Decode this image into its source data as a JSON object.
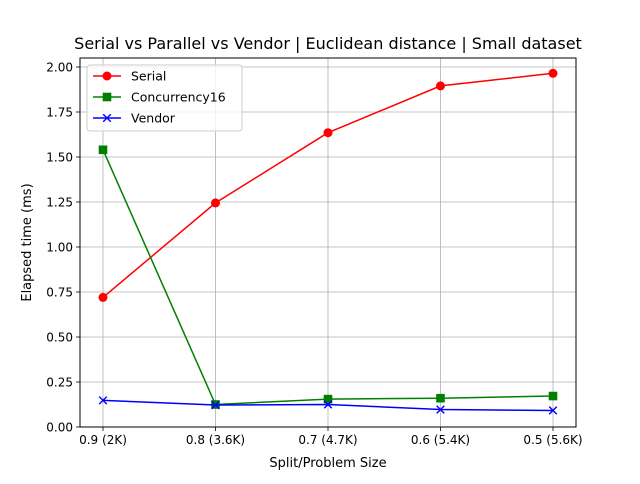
{
  "chart_data": {
    "type": "line",
    "title": "Serial vs Parallel vs Vendor | Euclidean distance | Small dataset",
    "xlabel": "Split/Problem Size",
    "ylabel": "Elapsed time (ms)",
    "categories": [
      "0.9 (2K)",
      "0.8 (3.6K)",
      "0.7 (4.7K)",
      "0.6 (5.4K)",
      "0.5 (5.6K)"
    ],
    "ylim": [
      0.0,
      2.05
    ],
    "yticks": [
      0.0,
      0.25,
      0.5,
      0.75,
      1.0,
      1.25,
      1.5,
      1.75,
      2.0
    ],
    "ytick_labels": [
      "0.00",
      "0.25",
      "0.50",
      "0.75",
      "1.00",
      "1.25",
      "1.50",
      "1.75",
      "2.00"
    ],
    "grid": true,
    "legend_position": "top-left",
    "series": [
      {
        "name": "Serial",
        "color": "#ff0000",
        "marker": "circle",
        "values": [
          0.72,
          1.245,
          1.635,
          1.895,
          1.965
        ]
      },
      {
        "name": "Concurrency16",
        "color": "#008000",
        "marker": "square",
        "values": [
          1.54,
          0.125,
          0.155,
          0.16,
          0.172
        ]
      },
      {
        "name": "Vendor",
        "color": "#0000ff",
        "marker": "x",
        "values": [
          0.148,
          0.122,
          0.125,
          0.097,
          0.092
        ]
      }
    ]
  }
}
